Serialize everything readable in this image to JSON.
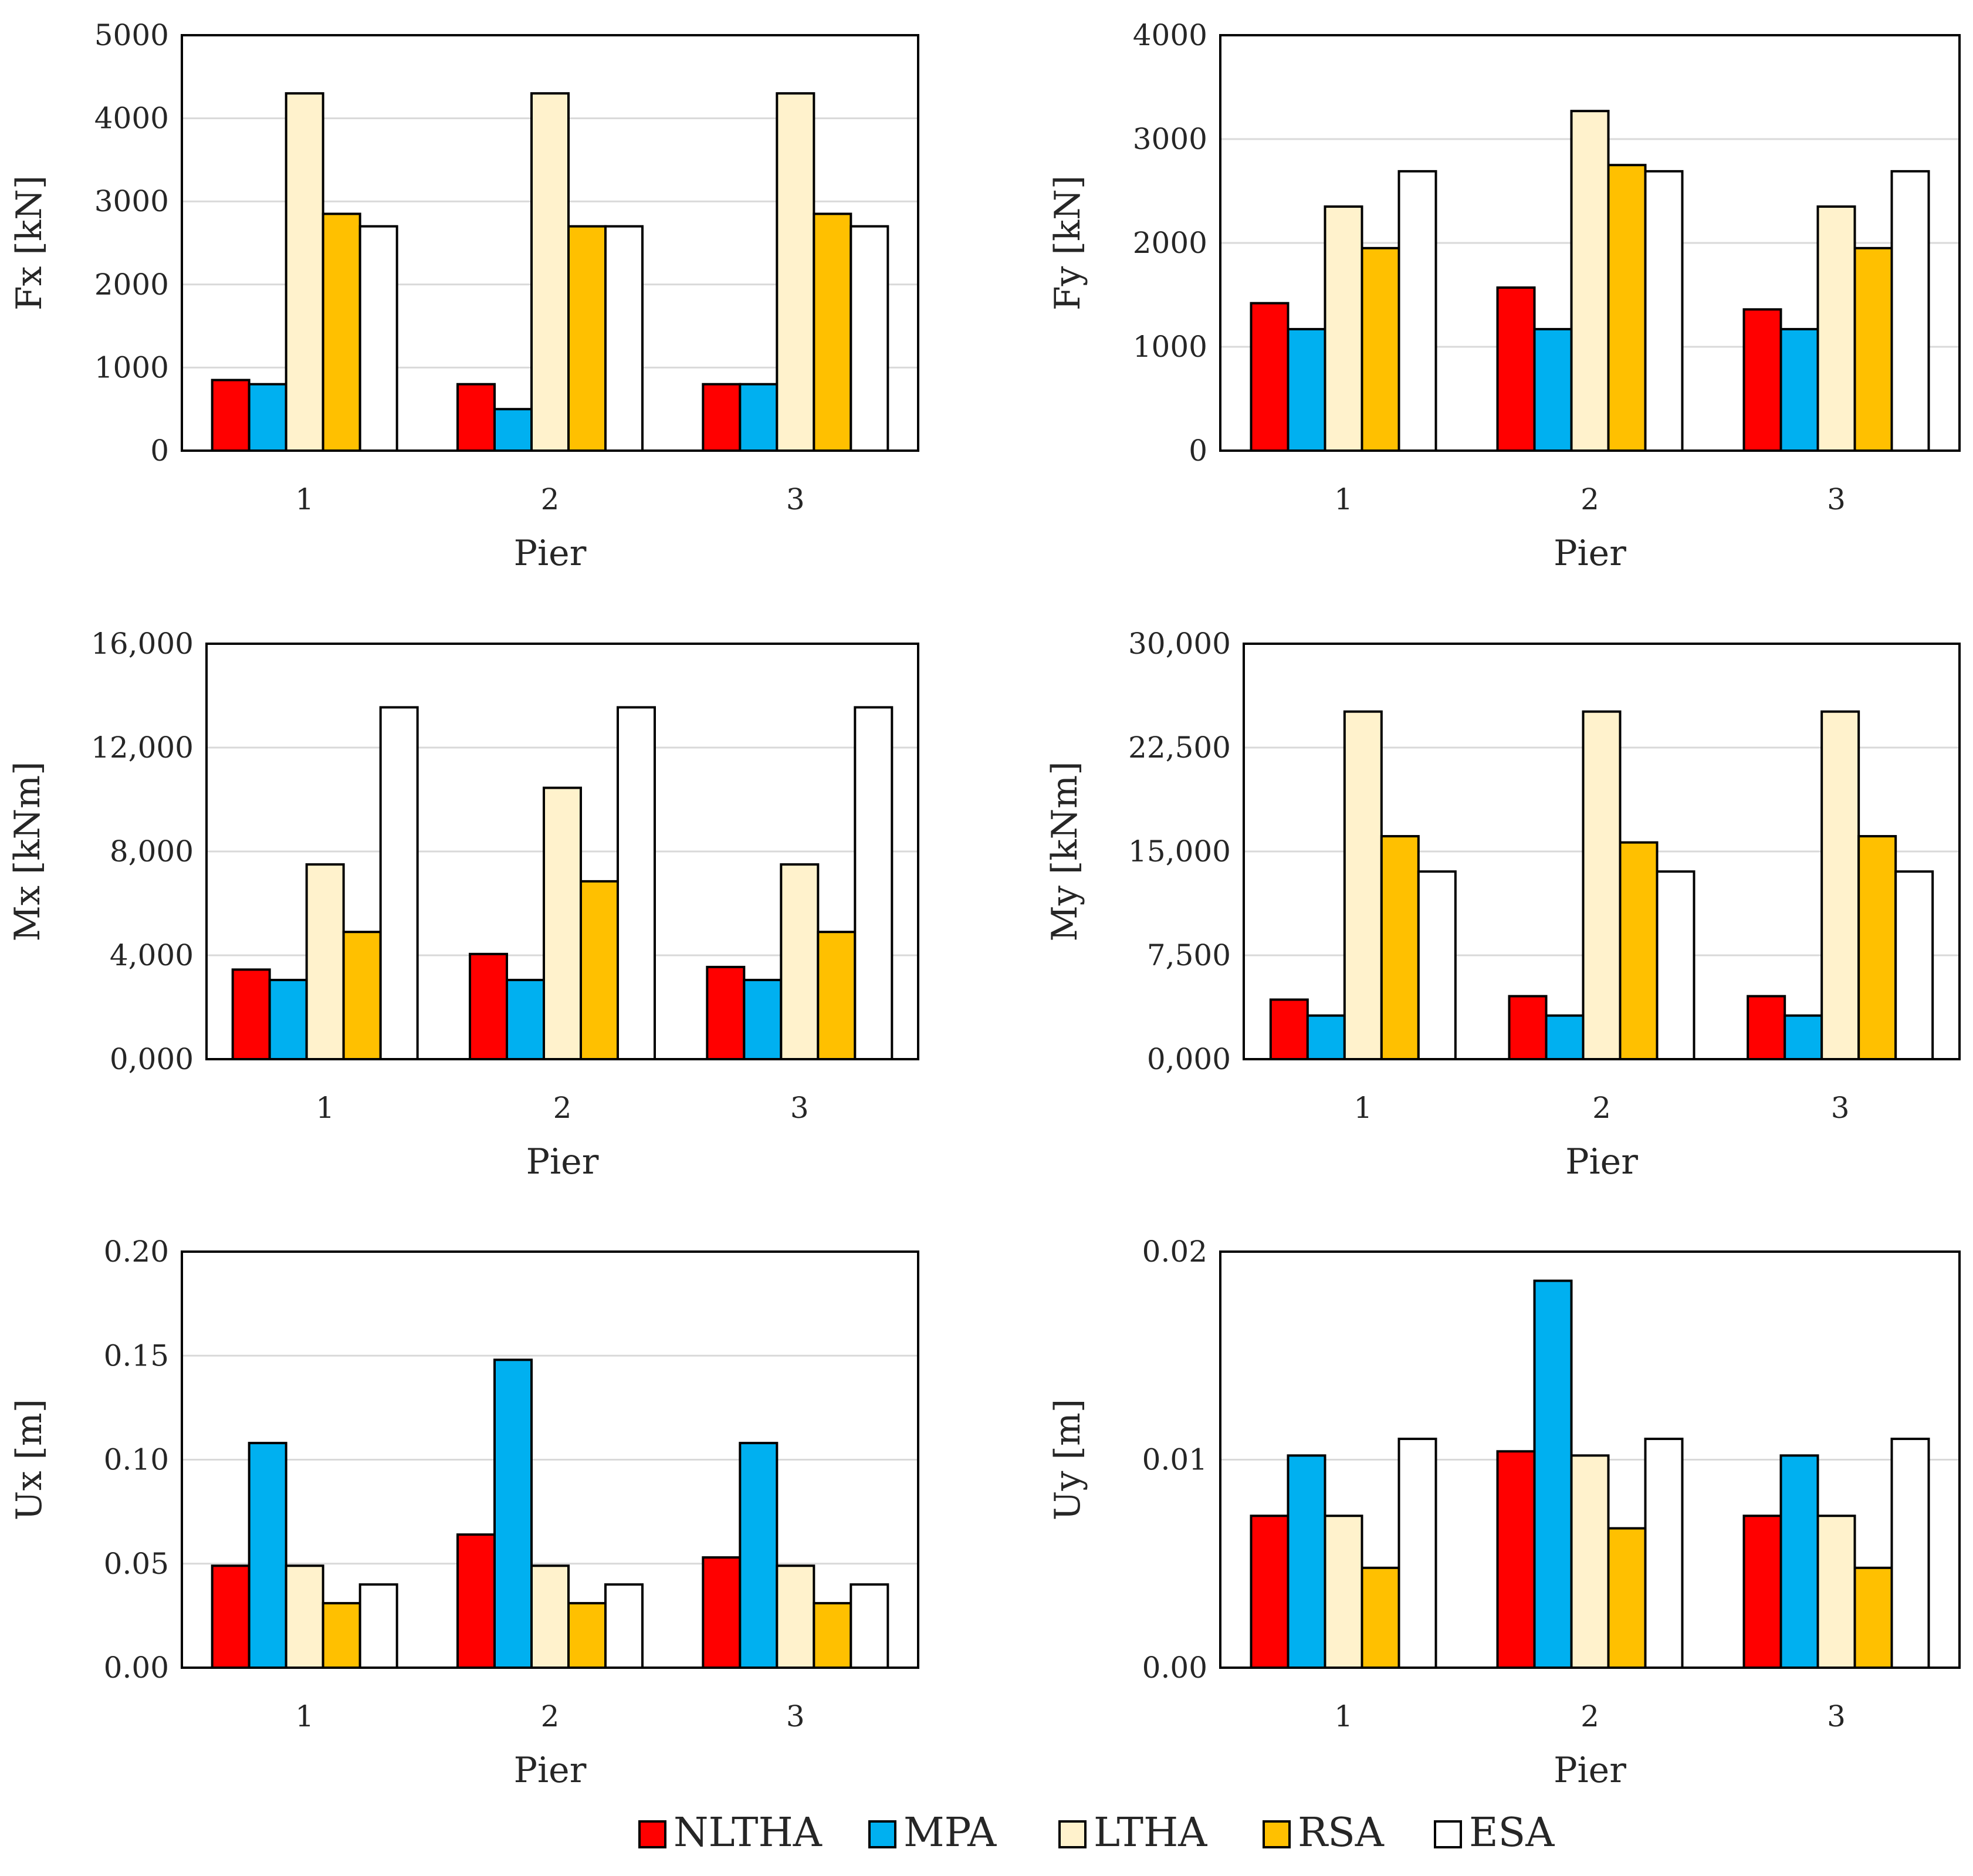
{
  "series_colors": {
    "NLTHA": "#ff0000",
    "MPA": "#00b0f0",
    "LTHA": "#fff2cc",
    "RSA": "#ffc000",
    "ESA": "#ffffff"
  },
  "legend": [
    "NLTHA",
    "MPA",
    "LTHA",
    "RSA",
    "ESA"
  ],
  "chart_data": [
    {
      "type": "bar",
      "id": "fx",
      "title": "",
      "xlabel": "Pier",
      "ylabel": "Fx [kN]",
      "categories": [
        "1",
        "2",
        "3"
      ],
      "ylim": [
        0,
        5000
      ],
      "yticks": [
        "0",
        "1000",
        "2000",
        "3000",
        "4000",
        "5000"
      ],
      "grid": true,
      "series": [
        {
          "name": "NLTHA",
          "values": [
            850,
            800,
            800
          ]
        },
        {
          "name": "MPA",
          "values": [
            800,
            500,
            800
          ]
        },
        {
          "name": "LTHA",
          "values": [
            4300,
            4300,
            4300
          ]
        },
        {
          "name": "RSA",
          "values": [
            2850,
            2700,
            2850
          ]
        },
        {
          "name": "ESA",
          "values": [
            2700,
            2700,
            2700
          ]
        }
      ]
    },
    {
      "type": "bar",
      "id": "fy",
      "title": "",
      "xlabel": "Pier",
      "ylabel": "Fy [kN]",
      "categories": [
        "1",
        "2",
        "3"
      ],
      "ylim": [
        0,
        4000
      ],
      "yticks": [
        "0",
        "1000",
        "2000",
        "3000",
        "4000"
      ],
      "grid": true,
      "series": [
        {
          "name": "NLTHA",
          "values": [
            1420,
            1570,
            1360
          ]
        },
        {
          "name": "MPA",
          "values": [
            1170,
            1170,
            1170
          ]
        },
        {
          "name": "LTHA",
          "values": [
            2350,
            3270,
            2350
          ]
        },
        {
          "name": "RSA",
          "values": [
            1950,
            2750,
            1950
          ]
        },
        {
          "name": "ESA",
          "values": [
            2690,
            2690,
            2690
          ]
        }
      ]
    },
    {
      "type": "bar",
      "id": "mx",
      "title": "",
      "xlabel": "Pier",
      "ylabel": "Mx [kNm]",
      "categories": [
        "1",
        "2",
        "3"
      ],
      "ylim": [
        0,
        16000
      ],
      "yticks": [
        "0,000",
        "4,000",
        "8,000",
        "12,000",
        "16,000"
      ],
      "grid": true,
      "series": [
        {
          "name": "NLTHA",
          "values": [
            3450,
            4050,
            3550
          ]
        },
        {
          "name": "MPA",
          "values": [
            3050,
            3050,
            3050
          ]
        },
        {
          "name": "LTHA",
          "values": [
            7500,
            10450,
            7500
          ]
        },
        {
          "name": "RSA",
          "values": [
            4900,
            6850,
            4900
          ]
        },
        {
          "name": "ESA",
          "values": [
            13550,
            13550,
            13550
          ]
        }
      ]
    },
    {
      "type": "bar",
      "id": "my",
      "title": "",
      "xlabel": "Pier",
      "ylabel": "My [kNm]",
      "categories": [
        "1",
        "2",
        "3"
      ],
      "ylim": [
        0,
        30000
      ],
      "yticks": [
        "0,000",
        "7,500",
        "15,000",
        "22,500",
        "30,000"
      ],
      "grid": true,
      "series": [
        {
          "name": "NLTHA",
          "values": [
            4300,
            4550,
            4550
          ]
        },
        {
          "name": "MPA",
          "values": [
            3150,
            3150,
            3150
          ]
        },
        {
          "name": "LTHA",
          "values": [
            25100,
            25100,
            25100
          ]
        },
        {
          "name": "RSA",
          "values": [
            16100,
            15650,
            16100
          ]
        },
        {
          "name": "ESA",
          "values": [
            13550,
            13550,
            13550
          ]
        }
      ]
    },
    {
      "type": "bar",
      "id": "ux",
      "title": "",
      "xlabel": "Pier",
      "ylabel": "Ux [m]",
      "categories": [
        "1",
        "2",
        "3"
      ],
      "ylim": [
        0,
        0.2
      ],
      "yticks": [
        "0.00",
        "0.05",
        "0.10",
        "0.15",
        "0.20"
      ],
      "grid": true,
      "series": [
        {
          "name": "NLTHA",
          "values": [
            0.049,
            0.064,
            0.053
          ]
        },
        {
          "name": "MPA",
          "values": [
            0.108,
            0.148,
            0.108
          ]
        },
        {
          "name": "LTHA",
          "values": [
            0.049,
            0.049,
            0.049
          ]
        },
        {
          "name": "RSA",
          "values": [
            0.031,
            0.031,
            0.031
          ]
        },
        {
          "name": "ESA",
          "values": [
            0.04,
            0.04,
            0.04
          ]
        }
      ]
    },
    {
      "type": "bar",
      "id": "uy",
      "title": "",
      "xlabel": "Pier",
      "ylabel": "Uy [m]",
      "categories": [
        "1",
        "2",
        "3"
      ],
      "ylim": [
        0,
        0.02
      ],
      "yticks": [
        "0.00",
        "0.01",
        "0.02"
      ],
      "grid": true,
      "series": [
        {
          "name": "NLTHA",
          "values": [
            0.0073,
            0.0104,
            0.0073
          ]
        },
        {
          "name": "MPA",
          "values": [
            0.0102,
            0.0186,
            0.0102
          ]
        },
        {
          "name": "LTHA",
          "values": [
            0.0073,
            0.0102,
            0.0073
          ]
        },
        {
          "name": "RSA",
          "values": [
            0.0048,
            0.0067,
            0.0048
          ]
        },
        {
          "name": "ESA",
          "values": [
            0.011,
            0.011,
            0.011
          ]
        }
      ]
    }
  ]
}
